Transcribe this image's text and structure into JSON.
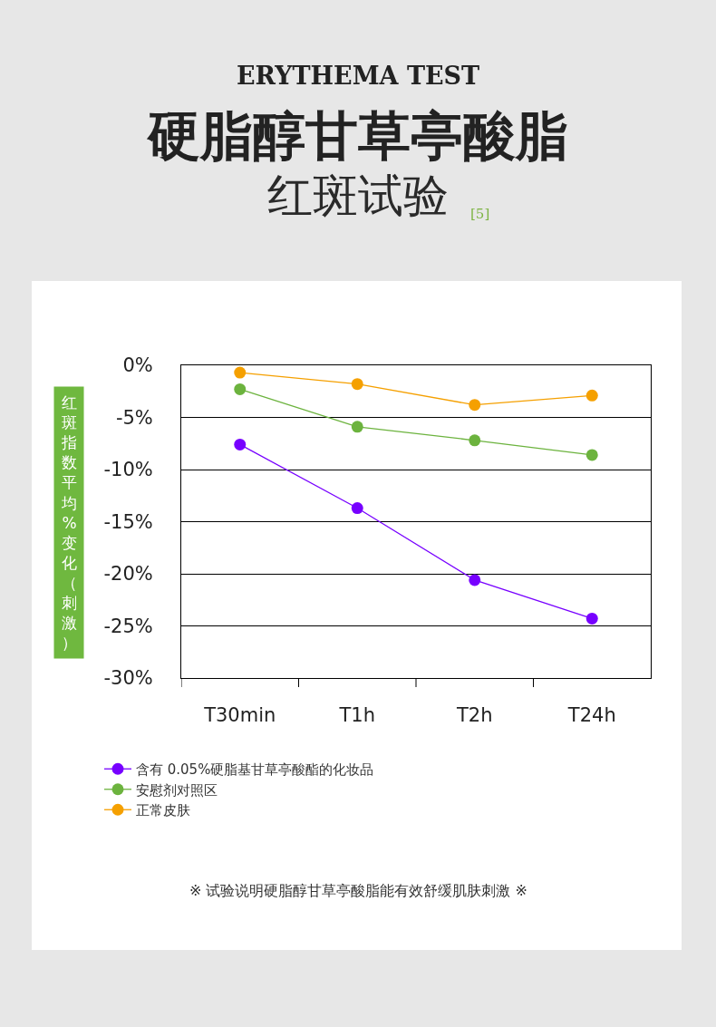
{
  "chart_data": {
    "type": "line",
    "title": "硬脂醇甘草亭酸脂",
    "subtitle": "红斑试验",
    "ylabel": "红斑指数平均%变化（刺激）",
    "annotations": [
      "ERYTHEMA TEST",
      "[5]",
      "※ 试验说明硬脂醇甘草亭酸脂能有效舒缓肌肤刺激 ※"
    ],
    "categories": [
      "T30min",
      "T1h",
      "T2h",
      "T24h"
    ],
    "series": [
      {
        "name": "含有 0.05%硬脂基甘草亭酸酯的化妆品",
        "color": "#7700ff",
        "values": [
          -7.6,
          -13.7,
          -20.6,
          -24.3
        ]
      },
      {
        "name": "安慰剂对照区",
        "color": "#6cb33e",
        "values": [
          -2.3,
          -5.9,
          -7.2,
          -8.6
        ]
      },
      {
        "name": "正常皮肤",
        "color": "#f5a000",
        "values": [
          -0.7,
          -1.8,
          -3.8,
          -2.9
        ]
      }
    ],
    "ylim": [
      -30,
      0
    ],
    "yticks": [
      {
        "value": 0,
        "label": "0%"
      },
      {
        "value": -5,
        "label": "-5%"
      },
      {
        "value": -10,
        "label": "-10%"
      },
      {
        "value": -15,
        "label": "-15%"
      },
      {
        "value": -20,
        "label": "-20%"
      },
      {
        "value": -25,
        "label": "-25%"
      },
      {
        "value": -30,
        "label": "-30%"
      }
    ],
    "grid": "y",
    "legend": "bottom",
    "marker": "circle",
    "line_style": "solid"
  }
}
